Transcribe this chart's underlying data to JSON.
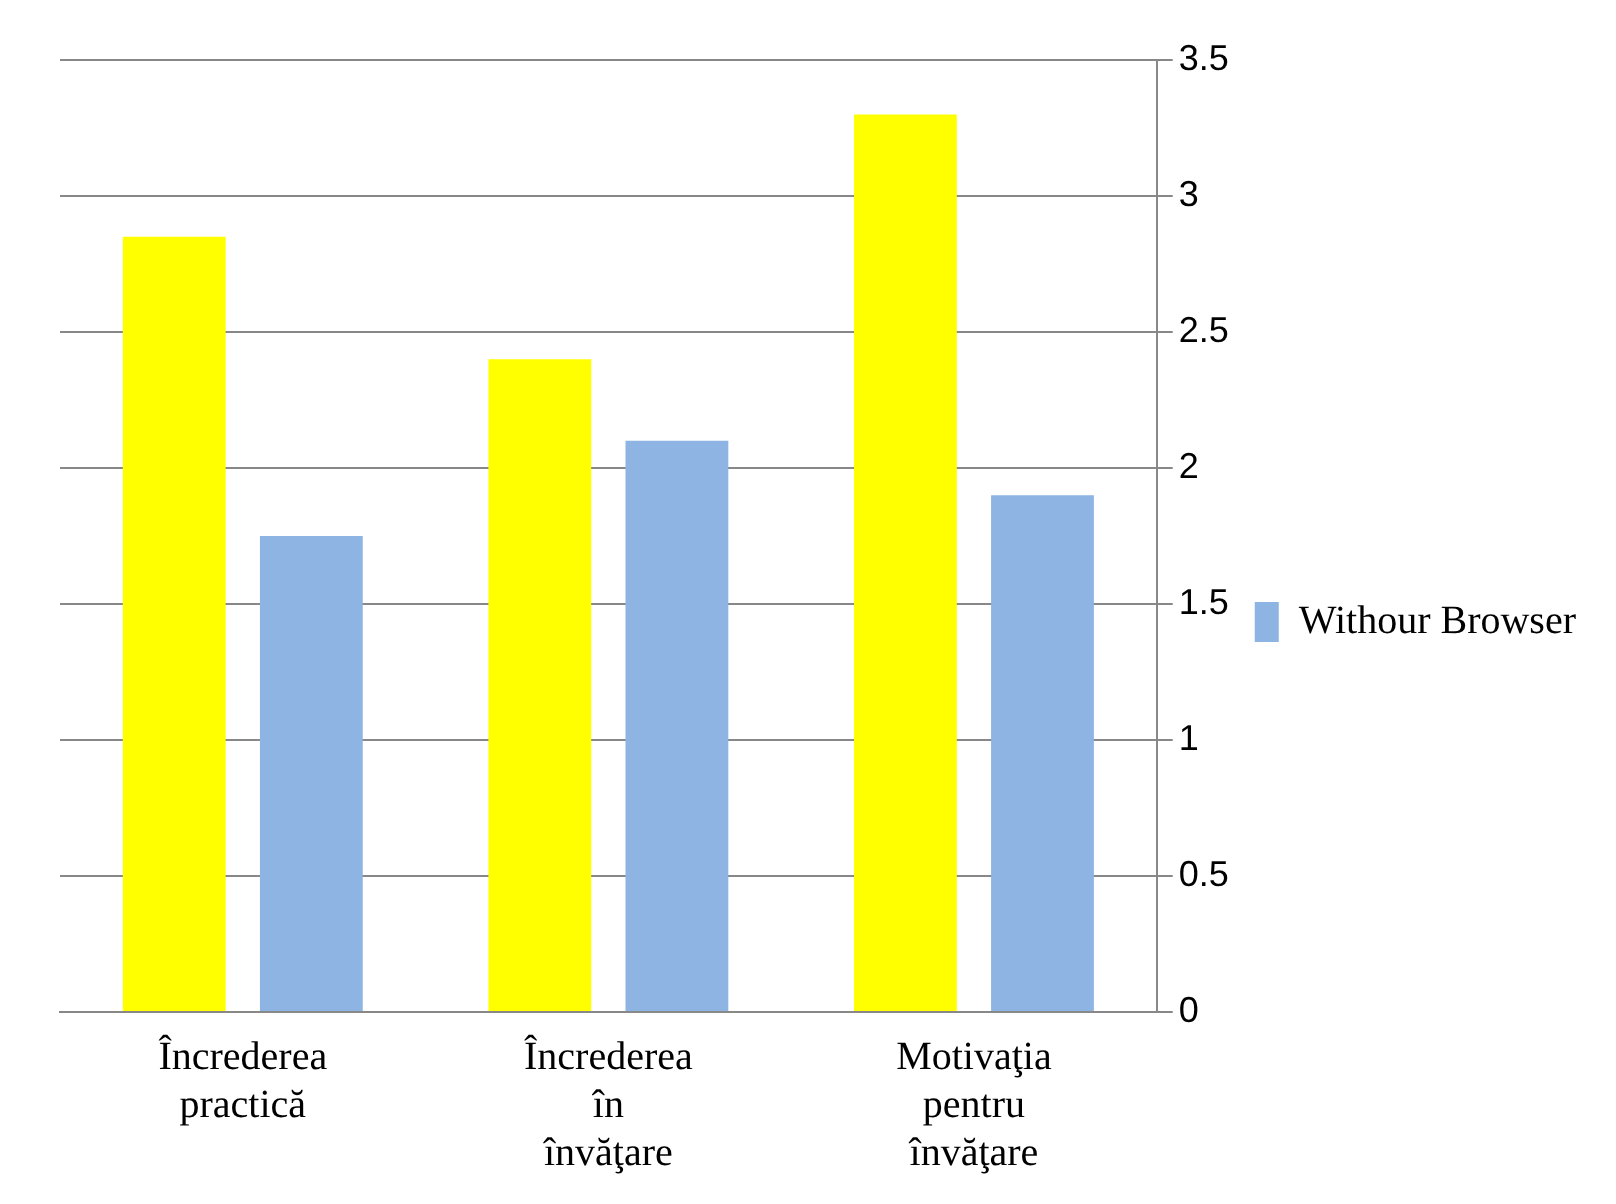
{
  "chart_data": {
    "type": "bar",
    "categories": [
      "Încrederea practică",
      "Încrederea în învăţare",
      "Motivaţia pentru învăţare"
    ],
    "series": [
      {
        "color": "#ffff00",
        "values": [
          2.85,
          2.4,
          3.3
        ]
      },
      {
        "name": "Withour Browser",
        "color": "#8db4e2",
        "values": [
          1.75,
          2.1,
          1.9
        ]
      }
    ],
    "ylim": [
      0,
      3.5
    ],
    "yticks": [
      0,
      0.5,
      1,
      1.5,
      2,
      2.5,
      3,
      3.5
    ],
    "grid": "y",
    "legend": "right"
  }
}
